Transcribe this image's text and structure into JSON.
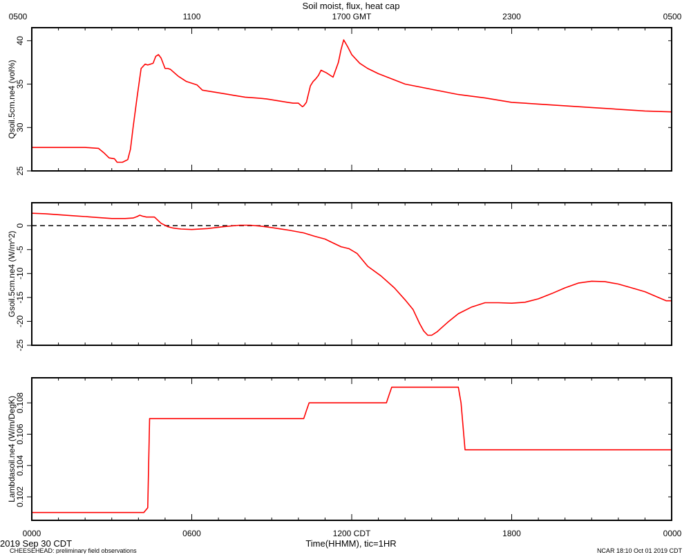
{
  "title": "Soil moist, flux, heat cap",
  "top_axis_labels": [
    "0500",
    "1100",
    "1700 GMT",
    "2300",
    "0500"
  ],
  "bottom_axis_labels": [
    "0000",
    "0600",
    "1200 CDT",
    "1800",
    "0000"
  ],
  "xlabel": "Time(HHMM), tic=1HR",
  "date_label": "2019 Sep 30 CDT",
  "footer_left": "CHEESEHEAD: preliminary field observations",
  "footer_right": "NCAR 18:10 Oct 01 2019 CDT",
  "colors": {
    "series": "#ff0000",
    "axes": "#000000",
    "zero_line": "#000000"
  },
  "chart_data": [
    {
      "type": "line",
      "ylabel": "Qsoil.5cm.ne4 (vol%)",
      "x_unit": "hours since 0000 CDT",
      "xlim": [
        0,
        24
      ],
      "ylim": [
        25,
        41.5
      ],
      "yticks": [
        25,
        30,
        35,
        40
      ],
      "ytick_labels": [
        "25",
        "30",
        "35",
        "40"
      ],
      "series": [
        {
          "x": [
            0,
            1,
            2,
            2.5,
            2.7,
            2.9,
            3.1,
            3.2,
            3.4,
            3.6,
            3.7,
            3.8,
            3.95,
            4.1,
            4.25,
            4.35,
            4.45,
            4.55,
            4.65,
            4.75,
            4.85,
            5.0,
            5.1,
            5.2,
            5.5,
            5.8,
            6.2,
            6.4,
            6.8,
            7.2,
            7.6,
            8,
            8.4,
            8.8,
            9.2,
            9.6,
            9.8,
            10.0,
            10.15,
            10.2,
            10.3,
            10.45,
            10.55,
            10.65,
            10.75,
            10.85,
            11.05,
            11.3,
            11.5,
            11.6,
            11.7,
            11.85,
            12,
            12.3,
            12.6,
            13,
            13.5,
            14,
            15,
            16,
            17,
            18,
            19,
            20,
            21,
            22,
            23,
            24
          ],
          "values": [
            27.7,
            27.7,
            27.7,
            27.6,
            27.1,
            26.5,
            26.4,
            26.0,
            26.0,
            26.3,
            27.5,
            30.0,
            33.5,
            36.8,
            37.3,
            37.2,
            37.3,
            37.4,
            38.2,
            38.4,
            38.0,
            36.8,
            36.8,
            36.7,
            35.9,
            35.3,
            34.9,
            34.3,
            34.1,
            33.9,
            33.7,
            33.5,
            33.4,
            33.3,
            33.1,
            32.9,
            32.8,
            32.8,
            32.4,
            32.5,
            32.9,
            34.8,
            35.3,
            35.6,
            36.0,
            36.6,
            36.3,
            35.8,
            37.5,
            39.0,
            40.1,
            39.3,
            38.4,
            37.4,
            36.8,
            36.2,
            35.6,
            35.0,
            34.4,
            33.8,
            33.4,
            32.9,
            32.7,
            32.5,
            32.3,
            32.1,
            31.9,
            31.8
          ]
        }
      ]
    },
    {
      "type": "line",
      "ylabel": "Gsoil.5cm.ne4 (W/m^2)",
      "x_unit": "hours since 0000 CDT",
      "xlim": [
        0,
        24
      ],
      "ylim": [
        -25,
        4.8
      ],
      "yticks": [
        -25,
        -20,
        -15,
        -10,
        -5,
        0
      ],
      "ytick_labels": [
        "-25",
        "-20",
        "-15",
        "-10",
        "-5",
        "0"
      ],
      "reference_lines": [
        {
          "y": 0,
          "style": "dashed"
        }
      ],
      "series": [
        {
          "x": [
            0,
            0.5,
            1,
            1.5,
            2,
            2.5,
            3,
            3.5,
            3.8,
            3.95,
            4.05,
            4.15,
            4.3,
            4.6,
            4.85,
            5.1,
            5.3,
            5.6,
            6,
            6.6,
            7.2,
            7.8,
            8.2,
            8.6,
            9,
            9.6,
            10.2,
            10.6,
            11,
            11.3,
            11.6,
            11.9,
            12.2,
            12.6,
            13.1,
            13.6,
            14.0,
            14.3,
            14.55,
            14.7,
            14.85,
            15.0,
            15.2,
            15.6,
            16,
            16.5,
            17,
            17.5,
            18,
            18.5,
            19,
            19.5,
            20,
            20.5,
            21,
            21.5,
            22,
            22.5,
            23,
            23.5,
            23.8,
            24
          ],
          "values": [
            2.6,
            2.5,
            2.3,
            2.1,
            1.9,
            1.7,
            1.5,
            1.5,
            1.6,
            1.9,
            2.2,
            2.0,
            1.8,
            1.8,
            0.5,
            -0.2,
            -0.5,
            -0.7,
            -0.8,
            -0.6,
            -0.2,
            0.1,
            0.1,
            -0.1,
            -0.4,
            -0.9,
            -1.5,
            -2.2,
            -2.8,
            -3.6,
            -4.4,
            -4.8,
            -5.8,
            -8.5,
            -10.5,
            -13.0,
            -15.5,
            -17.5,
            -20.5,
            -22.0,
            -22.9,
            -22.9,
            -22.2,
            -20.2,
            -18.4,
            -17.0,
            -16.1,
            -16.1,
            -16.2,
            -16.0,
            -15.3,
            -14.2,
            -13.0,
            -12.0,
            -11.6,
            -11.7,
            -12.2,
            -13.0,
            -13.8,
            -15.0,
            -15.7,
            -15.7
          ]
        }
      ]
    },
    {
      "type": "line",
      "ylabel": "Lambdasoil.ne4 (W/m/DegK)",
      "x_unit": "hours since 0000 CDT",
      "xlim": [
        0,
        24
      ],
      "ylim": [
        0.1005,
        0.1096
      ],
      "yticks": [
        0.102,
        0.104,
        0.106,
        0.108
      ],
      "ytick_labels": [
        "0.102",
        "0.104",
        "0.106",
        "0.108"
      ],
      "series": [
        {
          "x": [
            0,
            4.2,
            4.35,
            4.42,
            10.2,
            10.3,
            10.4,
            13.3,
            13.4,
            13.5,
            16.0,
            16.1,
            16.25,
            24
          ],
          "values": [
            0.101,
            0.101,
            0.1013,
            0.107,
            0.107,
            0.1075,
            0.108,
            0.108,
            0.1085,
            0.109,
            0.109,
            0.108,
            0.105,
            0.105
          ]
        }
      ]
    }
  ]
}
